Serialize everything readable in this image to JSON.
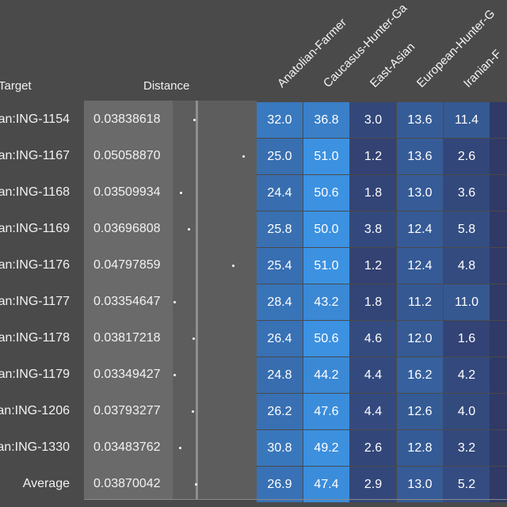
{
  "headers": {
    "target": "Target",
    "distance": "Distance",
    "populations": [
      "Anatolian-Farmer",
      "Caucasus-Hunter-Ga",
      "East-Asian",
      "European-Hunter-G",
      "Iranian-F"
    ]
  },
  "rows": [
    {
      "target": "an:ING-1154",
      "distance": "0.03838618",
      "dist_value": 0.03838618,
      "values": [
        "32.0",
        "36.8",
        "3.0",
        "13.6",
        "11.4"
      ]
    },
    {
      "target": "an:ING-1167",
      "distance": "0.05058870",
      "dist_value": 0.0505887,
      "values": [
        "25.0",
        "51.0",
        "1.2",
        "13.6",
        "2.6"
      ]
    },
    {
      "target": "an:ING-1168",
      "distance": "0.03509934",
      "dist_value": 0.03509934,
      "values": [
        "24.4",
        "50.6",
        "1.8",
        "13.0",
        "3.6"
      ]
    },
    {
      "target": "an:ING-1169",
      "distance": "0.03696808",
      "dist_value": 0.03696808,
      "values": [
        "25.8",
        "50.0",
        "3.8",
        "12.4",
        "5.8"
      ]
    },
    {
      "target": "an:ING-1176",
      "distance": "0.04797859",
      "dist_value": 0.04797859,
      "values": [
        "25.4",
        "51.0",
        "1.2",
        "12.4",
        "4.8"
      ]
    },
    {
      "target": "an:ING-1177",
      "distance": "0.03354647",
      "dist_value": 0.03354647,
      "values": [
        "28.4",
        "43.2",
        "1.8",
        "11.2",
        "11.0"
      ]
    },
    {
      "target": "an:ING-1178",
      "distance": "0.03817218",
      "dist_value": 0.03817218,
      "values": [
        "26.4",
        "50.6",
        "4.6",
        "12.0",
        "1.6"
      ]
    },
    {
      "target": "an:ING-1179",
      "distance": "0.03349427",
      "dist_value": 0.03349427,
      "values": [
        "24.8",
        "44.2",
        "4.4",
        "16.2",
        "4.2"
      ]
    },
    {
      "target": "an:ING-1206",
      "distance": "0.03793277",
      "dist_value": 0.03793277,
      "values": [
        "26.2",
        "47.6",
        "4.4",
        "12.6",
        "4.0"
      ]
    },
    {
      "target": "an:ING-1330",
      "distance": "0.03483762",
      "dist_value": 0.03483762,
      "values": [
        "30.8",
        "49.2",
        "2.6",
        "12.8",
        "3.2"
      ]
    },
    {
      "target": "Average",
      "distance": "0.03870042",
      "dist_value": 0.03870042,
      "values": [
        "26.9",
        "47.4",
        "2.9",
        "13.0",
        "5.2"
      ]
    }
  ],
  "colors": {
    "low": "#323d6c",
    "high": "#3c93e3"
  }
}
